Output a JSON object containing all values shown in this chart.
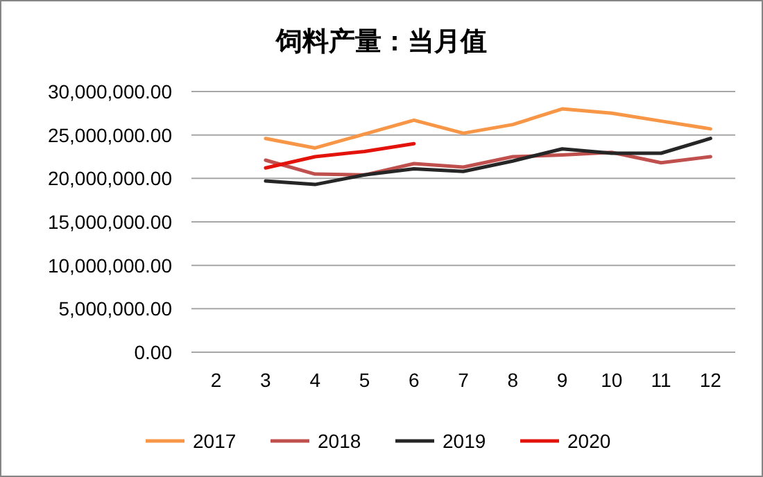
{
  "chart_data": {
    "type": "line",
    "title": "饲料产量：当月值",
    "categories": [
      "2",
      "3",
      "4",
      "5",
      "6",
      "7",
      "8",
      "9",
      "10",
      "11",
      "12"
    ],
    "series": [
      {
        "name": "2017",
        "color": "#f79646",
        "values": [
          null,
          24600000,
          23500000,
          25100000,
          26700000,
          25200000,
          26200000,
          28000000,
          27500000,
          26600000,
          25700000
        ]
      },
      {
        "name": "2018",
        "color": "#c0504d",
        "values": [
          null,
          22100000,
          20500000,
          20400000,
          21700000,
          21300000,
          22500000,
          22700000,
          23000000,
          21800000,
          22500000
        ]
      },
      {
        "name": "2019",
        "color": "#262626",
        "values": [
          null,
          19700000,
          19300000,
          20400000,
          21100000,
          20800000,
          22000000,
          23400000,
          22900000,
          22900000,
          24600000
        ]
      },
      {
        "name": "2020",
        "color": "#e3120b",
        "values": [
          null,
          21200000,
          22500000,
          23100000,
          24000000,
          null,
          null,
          null,
          null,
          null,
          null
        ]
      }
    ],
    "ylim": [
      0,
      30000000
    ],
    "yticks": [
      {
        "value": 0,
        "label": "0.00"
      },
      {
        "value": 5000000,
        "label": "5,000,000.00"
      },
      {
        "value": 10000000,
        "label": "10,000,000.00"
      },
      {
        "value": 15000000,
        "label": "15,000,000.00"
      },
      {
        "value": 20000000,
        "label": "20,000,000.00"
      },
      {
        "value": 25000000,
        "label": "25,000,000.00"
      },
      {
        "value": 30000000,
        "label": "30,000,000.00"
      }
    ],
    "grid": "y",
    "legend": "bottom",
    "marker": "none",
    "line_style": "solid"
  }
}
